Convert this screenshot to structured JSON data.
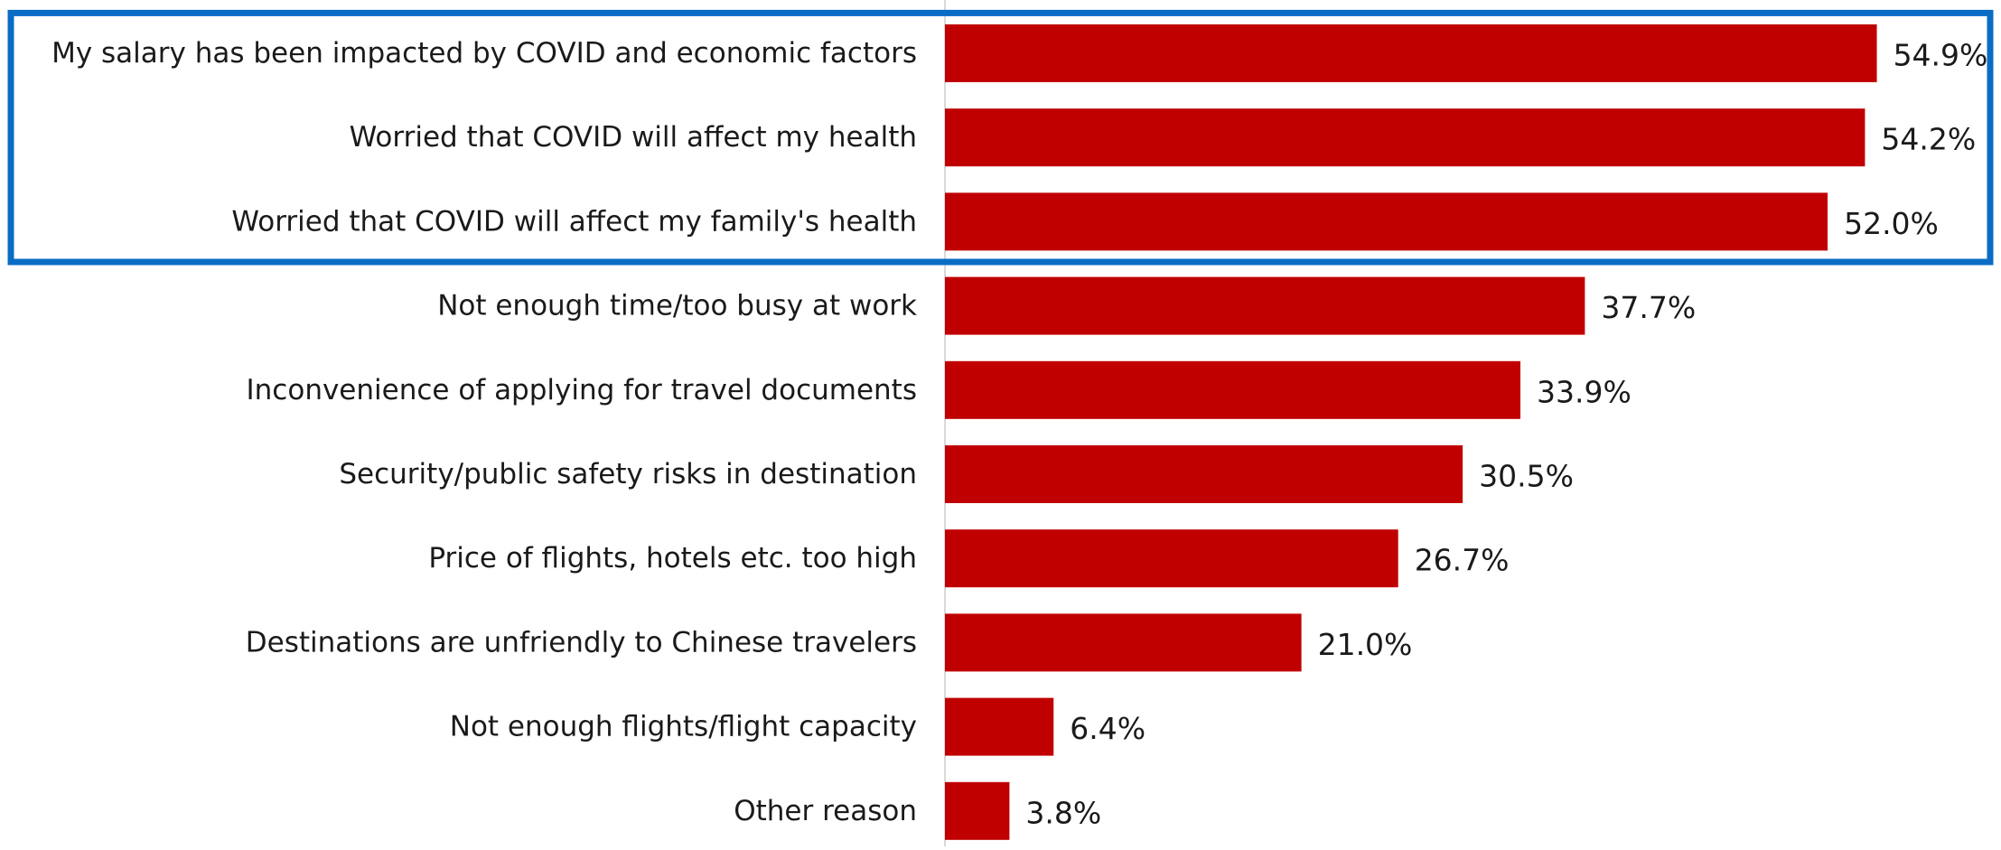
{
  "chart_data": {
    "type": "bar",
    "orientation": "horizontal",
    "categories": [
      "My salary has been impacted by COVID and economic factors",
      "Worried that COVID will affect my health",
      "Worried that COVID will affect my family's health",
      "Not enough time/too busy at work",
      "Inconvenience of applying for travel documents",
      "Security/public safety risks in destination",
      "Price of flights, hotels etc. too high",
      "Destinations are unfriendly to Chinese travelers",
      "Not enough flights/flight capacity",
      "Other reason"
    ],
    "values": [
      54.9,
      54.2,
      52.0,
      37.7,
      33.9,
      30.5,
      26.7,
      21.0,
      6.4,
      3.8
    ],
    "value_labels": [
      "54.9%",
      "54.2%",
      "52.0%",
      "37.7%",
      "33.9%",
      "30.5%",
      "26.7%",
      "21.0%",
      "6.4%",
      "3.8%"
    ],
    "unit": "%",
    "xlim": [
      0,
      60
    ],
    "grid": false,
    "legend": "none",
    "highlight": {
      "first_index": 0,
      "last_index": 2,
      "color": "#0a6cc4"
    },
    "bar_color": "#c00000",
    "axis_color": "#d9d9d9",
    "label_color": "#1a1a1a"
  }
}
